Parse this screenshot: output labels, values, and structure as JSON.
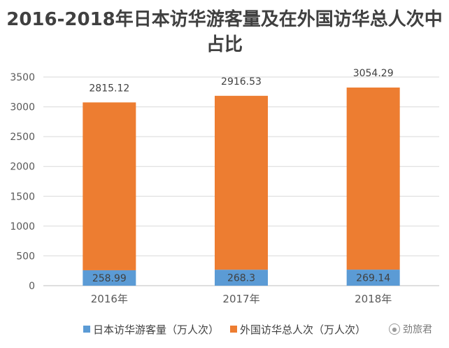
{
  "chart_data": {
    "type": "bar",
    "stacked": true,
    "title": "2016-2018年日本访华游客量及在外国访华总人次中占比",
    "categories": [
      "2016年",
      "2017年",
      "2018年"
    ],
    "series": [
      {
        "name": "日本访华游客量（万人次）",
        "values": [
          258.99,
          268.3,
          269.14
        ],
        "color": "#5B9BD5"
      },
      {
        "name": "外国访华总人次（万人次）",
        "values": [
          2815.12,
          2916.53,
          3054.29
        ],
        "color": "#ED7D31"
      }
    ],
    "ylim": [
      0,
      3500
    ],
    "yticks": [
      0,
      500,
      1000,
      1500,
      2000,
      2500,
      3000,
      3500
    ],
    "grid": true,
    "legend": "bottom"
  },
  "watermark": {
    "text": "劲旅君",
    "icon": "chat-bubble-icon"
  }
}
